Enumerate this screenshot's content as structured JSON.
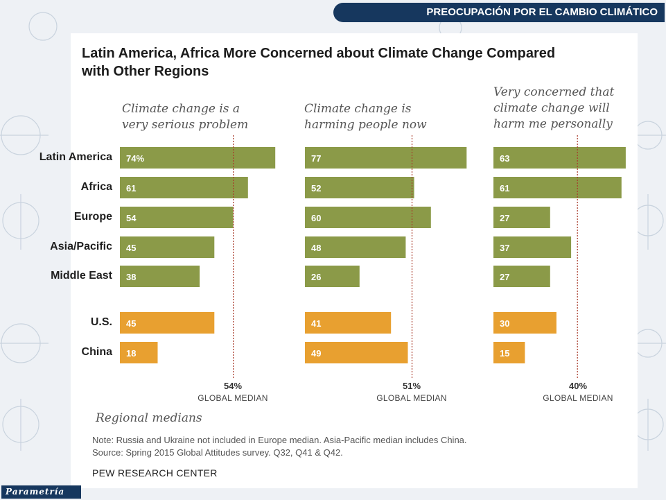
{
  "header": {
    "banner": "PREOCUPACIÓN POR EL CAMBIO CLIMÁTICO",
    "brand": "Parametría"
  },
  "chart_data": {
    "type": "bar",
    "title": "Latin America, Africa More Concerned about Climate Change Compared with Other Regions",
    "categories": [
      "Latin America",
      "Africa",
      "Europe",
      "Asia/Pacific",
      "Middle East",
      "U.S.",
      "China"
    ],
    "panels": [
      {
        "heading": "Climate change is a\nvery serious problem",
        "values": [
          74,
          61,
          54,
          45,
          38,
          45,
          18
        ],
        "labels": [
          "74%",
          "61",
          "54",
          "45",
          "38",
          "45",
          "18"
        ],
        "median": 54,
        "median_label": "54%"
      },
      {
        "heading": "Climate change is\nharming people now",
        "values": [
          77,
          52,
          60,
          48,
          26,
          41,
          49
        ],
        "labels": [
          "77",
          "52",
          "60",
          "48",
          "26",
          "41",
          "49"
        ],
        "median": 51,
        "median_label": "51%"
      },
      {
        "heading": "Very concerned that\nclimate change will\nharm me personally",
        "values": [
          63,
          61,
          27,
          37,
          27,
          30,
          15
        ],
        "labels": [
          "63",
          "61",
          "27",
          "37",
          "27",
          "30",
          "15"
        ],
        "median": 40,
        "median_label": "40%"
      }
    ],
    "median_caption": "GLOBAL MEDIAN",
    "legend_note": "Regional medians",
    "colors": {
      "regions": "#8b9a48",
      "countries": "#e8a030",
      "median_line": "#a83a2a"
    }
  },
  "footer": {
    "note_line1": "Note: Russia and Ukraine not included in Europe median. Asia-Pacific median includes China.",
    "note_line2": "Source: Spring 2015 Global Attitudes survey. Q32, Q41 & Q42.",
    "source_org": "PEW RESEARCH CENTER"
  }
}
